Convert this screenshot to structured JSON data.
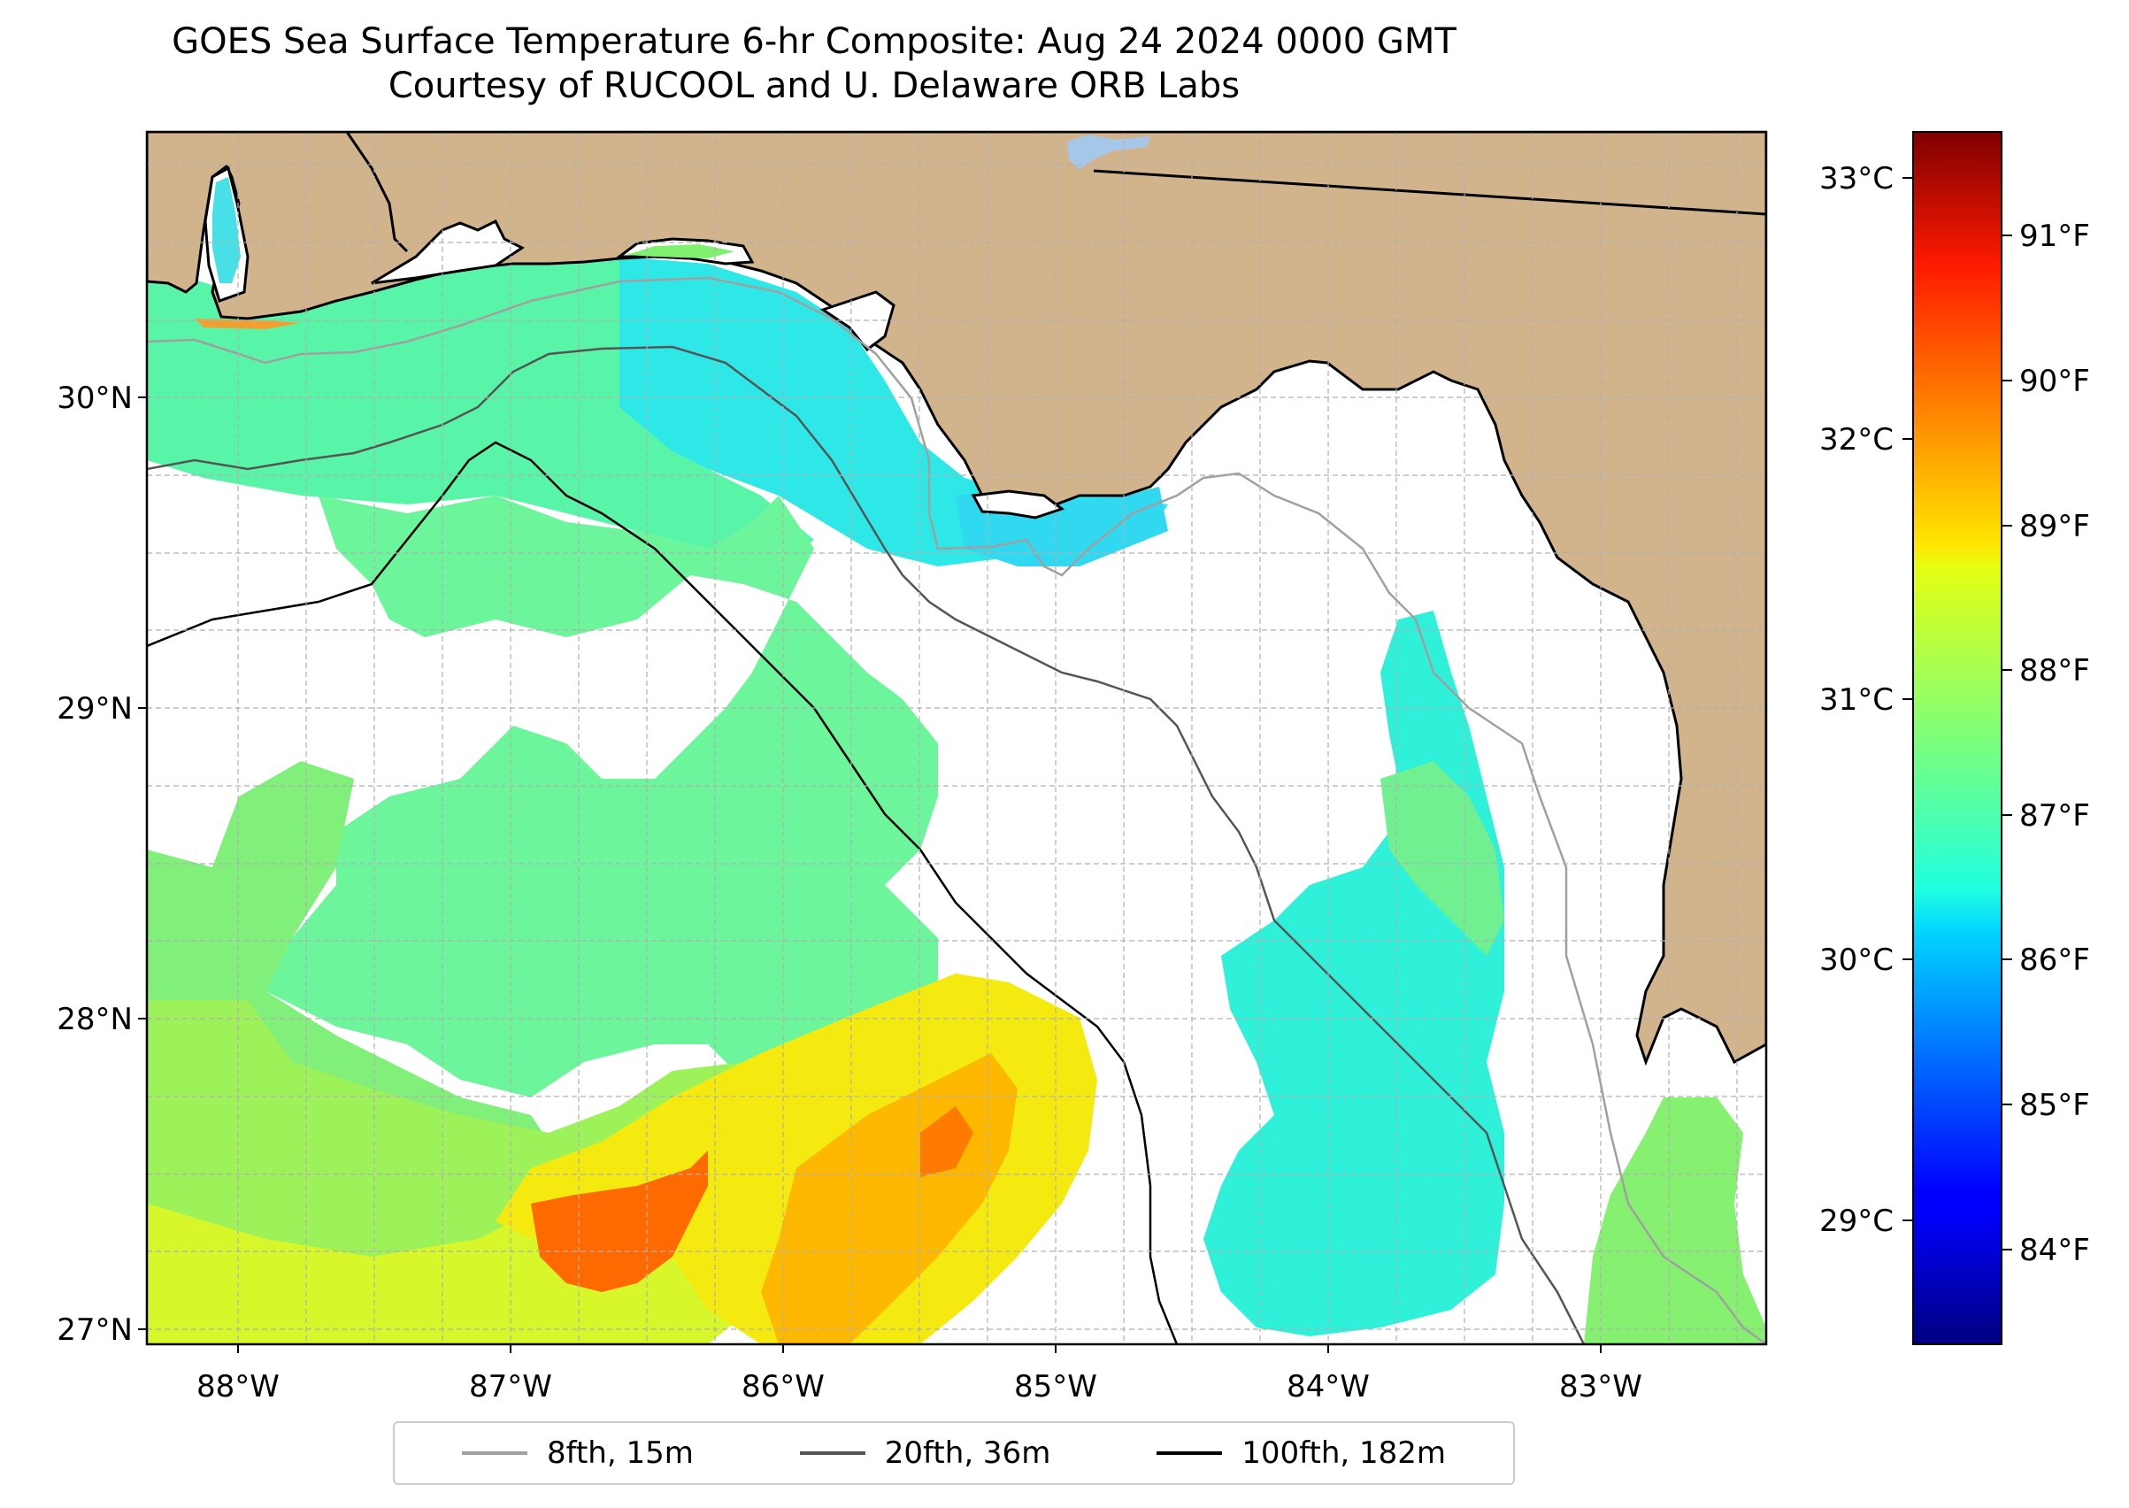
{
  "title": {
    "line1": "GOES Sea Surface Temperature 6-hr Composite: Aug 24 2024 0000 GMT",
    "line2": "Courtesy of RUCOOL and U. Delaware ORB Labs"
  },
  "map": {
    "lon_labels": [
      "88°W",
      "87°W",
      "86°W",
      "85°W",
      "84°W",
      "83°W"
    ],
    "lat_labels": [
      "30°N",
      "29°N",
      "28°N",
      "27°N"
    ],
    "extent": {
      "lon_min": -88.33,
      "lon_max": -82.38,
      "lat_min": 26.93,
      "lat_max": 30.85
    },
    "grid": true,
    "colors": {
      "land": "#d2b48c",
      "no_data": "#ffffff",
      "lake": "#a6c8e8",
      "grid": "#b0b0b0"
    }
  },
  "colorbar": {
    "colormap": "jet",
    "celsius_labels": [
      "33°C",
      "32°C",
      "31°C",
      "30°C",
      "29°C"
    ],
    "fahrenheit_labels": [
      "91°F",
      "90°F",
      "89°F",
      "88°F",
      "87°F",
      "86°F",
      "85°F",
      "84°F"
    ],
    "range_f": [
      83.4,
      91.6
    ]
  },
  "legend": {
    "items": [
      {
        "label": "8fth, 15m",
        "color": "#a0a0a0"
      },
      {
        "label": "20fth, 36m",
        "color": "#555555"
      },
      {
        "label": "100fth, 182m",
        "color": "#000000"
      }
    ]
  }
}
